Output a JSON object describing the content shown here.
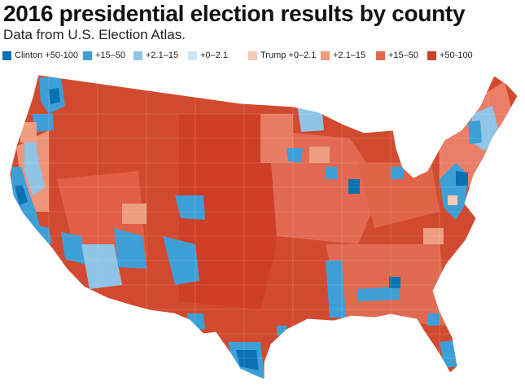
{
  "header": {
    "title": "2016 presidential election results by county",
    "subtitle": "Data from U.S. Election Atlas."
  },
  "legend": {
    "items": [
      {
        "label": "Clinton +50-100",
        "color": "#0a72b3"
      },
      {
        "label": "+15–50",
        "color": "#3e9fd6"
      },
      {
        "label": "+2.1–15",
        "color": "#8fc4e6"
      },
      {
        "label": "+0–2.1",
        "color": "#cfe5f3"
      },
      {
        "label": "Trump +0–2.1",
        "color": "#f6cab4"
      },
      {
        "label": "+2.1–15",
        "color": "#ee9d80"
      },
      {
        "label": "+15–50",
        "color": "#e5694f"
      },
      {
        "label": "+50-100",
        "color": "#cf3e26"
      }
    ]
  }
}
